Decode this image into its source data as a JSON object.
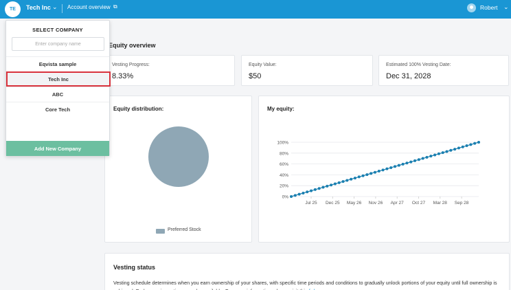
{
  "topbar": {
    "avatar_initials": "TE",
    "company_name": "Tech Inc",
    "account_link": "Account overview",
    "user_name": "Robert",
    "bg_color": "#1a96d4"
  },
  "main": {
    "section_title": "Equity overview",
    "stats": [
      {
        "label": "Vesting Progress:",
        "value": "8.33%"
      },
      {
        "label": "Equity Value:",
        "value": "$50"
      },
      {
        "label": "Estimated 100% Vesting Date:",
        "value": "Dec 31, 2028"
      }
    ],
    "distribution": {
      "title": "Equity distribution:",
      "legend_label": "Preferred Stock",
      "color": "#8fa7b5"
    },
    "my_equity": {
      "title": "My equity:"
    },
    "vesting": {
      "title": "Vesting status",
      "text": "Vesting schedule determines when you earn ownership of your shares, with specific time periods and conditions to gradually unlock portions of your equity until full ownership is achieved. Early exercise options may be available. For more information, please visit this",
      "link_text": "link"
    }
  },
  "dropdown": {
    "header": "SELECT COMPANY",
    "search_placeholder": "Enter company name",
    "companies": [
      "Eqvista sample",
      "Tech Inc",
      "ABC",
      "Core Tech"
    ],
    "selected": "Tech Inc",
    "add_button": "Add New Company",
    "add_color": "#6cbfa0"
  },
  "chart_data": {
    "type": "line",
    "title": "My equity:",
    "x_ticks": [
      "Jul 25",
      "Dec 25",
      "May 26",
      "Nov 26",
      "Apr 27",
      "Oct 27",
      "Mar 28",
      "Sep 28"
    ],
    "y_ticks": [
      "0%",
      "20%",
      "40%",
      "60%",
      "80%",
      "100%"
    ],
    "ylim": [
      0,
      100
    ],
    "series": [
      {
        "color": "#1a7fb0",
        "points": 48,
        "start": 0,
        "end": 100
      }
    ]
  }
}
